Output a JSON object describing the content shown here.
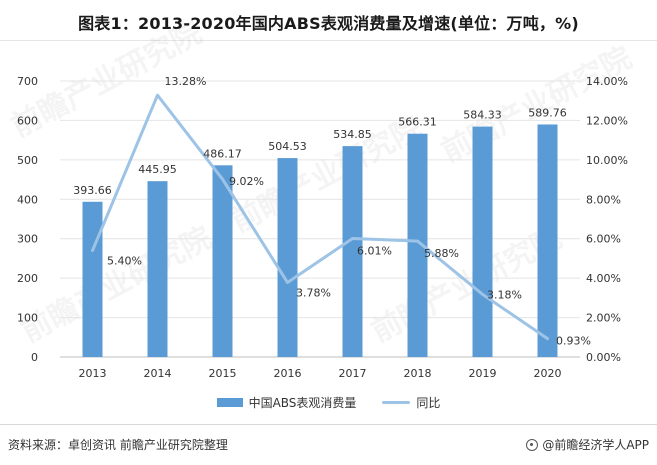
{
  "title": "图表1：2013-2020年国内ABS表观消费量及增速(单位：万吨，%)",
  "source": "资料来源：卓创资讯 前瞻产业研究院整理",
  "brand": "@前瞻经济学人APP",
  "watermark": "前瞻产业研究院",
  "legend": {
    "bar": "中国ABS表观消费量",
    "line": "同比"
  },
  "colors": {
    "bar": "#5b9bd5",
    "line": "#9dc3e6"
  },
  "chart_data": {
    "type": "bar",
    "categories": [
      "2013",
      "2014",
      "2015",
      "2016",
      "2017",
      "2018",
      "2019",
      "2020"
    ],
    "series": [
      {
        "name": "中国ABS表观消费量",
        "type": "bar",
        "axis": "left",
        "values": [
          393.66,
          445.95,
          486.17,
          504.53,
          534.85,
          566.31,
          584.33,
          589.76
        ],
        "labels": [
          "393.66",
          "445.95",
          "486.17",
          "504.53",
          "534.85",
          "566.31",
          "584.33",
          "589.76"
        ]
      },
      {
        "name": "同比",
        "type": "line",
        "axis": "right",
        "values": [
          5.4,
          13.28,
          9.02,
          3.78,
          6.01,
          5.88,
          3.18,
          0.93
        ],
        "labels": [
          "5.40%",
          "13.28%",
          "9.02%",
          "3.78%",
          "6.01%",
          "5.88%",
          "3.18%",
          "0.93%"
        ]
      }
    ],
    "ylim_left": [
      0,
      700
    ],
    "ylim_right": [
      0,
      14
    ],
    "left_ticks": [
      "0",
      "100",
      "200",
      "300",
      "400",
      "500",
      "600",
      "700"
    ],
    "right_ticks": [
      "0.00%",
      "2.00%",
      "4.00%",
      "6.00%",
      "8.00%",
      "10.00%",
      "12.00%",
      "14.00%"
    ],
    "grid": true,
    "legend_position": "bottom"
  }
}
